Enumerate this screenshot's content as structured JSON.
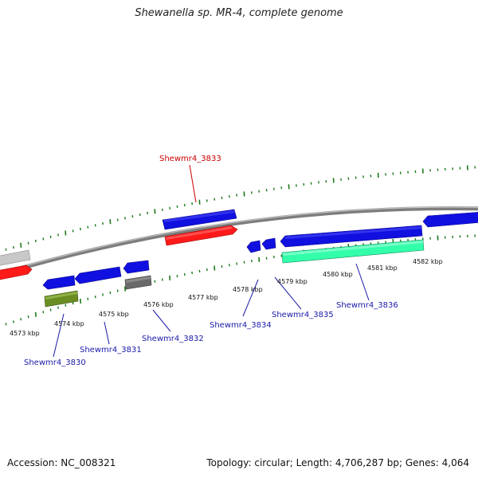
{
  "title": "Shewanella sp. MR-4, complete genome",
  "footer": {
    "accession": "Accession: NC_008321",
    "summary": "Topology: circular; Length: 4,706,287 bp; Genes: 4,064"
  },
  "scale_labels": [
    "4573 kbp",
    "4574 kbp",
    "4575 kbp",
    "4576 kbp",
    "4577 kbp",
    "4578 kbp",
    "4579 kbp",
    "4580 kbp",
    "4581 kbp",
    "4582 kbp"
  ],
  "gene_labels": {
    "g3833": "Shewmr4_3833",
    "g3830": "Shewmr4_3830",
    "g3831": "Shewmr4_3831",
    "g3832": "Shewmr4_3832",
    "g3834": "Shewmr4_3834",
    "g3835": "Shewmr4_3835",
    "g3836": "Shewmr4_3836"
  },
  "colors": {
    "backbone": "#8a8a8a",
    "tick": "#1a7a1a",
    "label_blue": "#1a1aa8",
    "label_red": "#cc0000",
    "gene_blue": "#1010e0",
    "gene_red": "#ff1a1a",
    "gene_gray_light": "#c8c8c8",
    "gene_gray_dark": "#6a6a6a",
    "gene_olive": "#6b8e23",
    "gene_teal": "#33ffaa"
  }
}
